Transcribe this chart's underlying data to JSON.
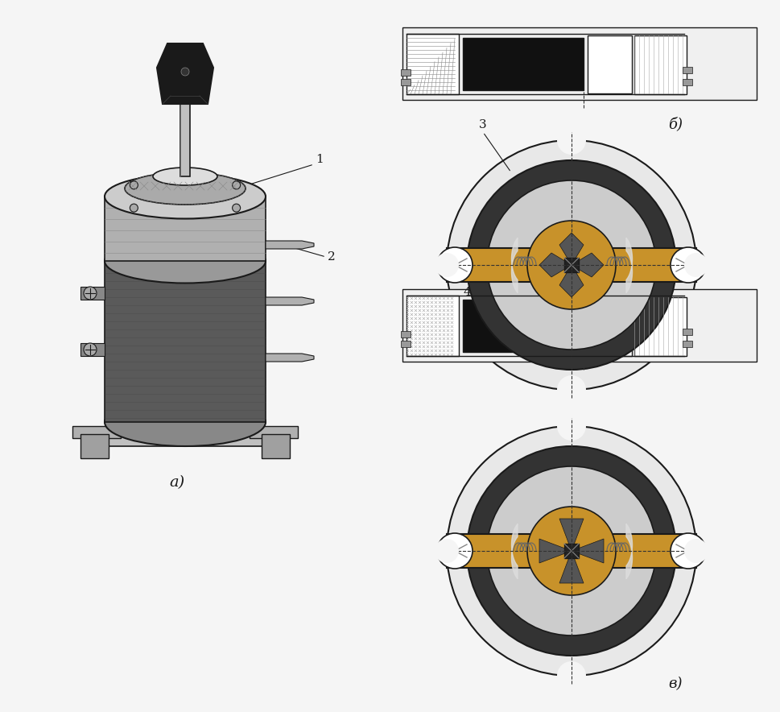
{
  "bg_color": "#f5f5f5",
  "title": "",
  "labels": {
    "a": "а)",
    "b": "б)",
    "v": "в)",
    "1": "1",
    "2": "2",
    "3": "3",
    "4": "4"
  },
  "colors": {
    "black": "#1a1a1a",
    "dark_gray": "#444444",
    "gray": "#888888",
    "light_gray": "#cccccc",
    "very_light_gray": "#e8e8e8",
    "white": "#ffffff",
    "gold": "#c8922a",
    "gold_light": "#d4a843",
    "hatch_color": "#666666",
    "bg": "#f5f5f5",
    "circle_outer": "#222222",
    "circle_mid": "#aaaaaa",
    "circle_inner_bg": "#dddddd"
  },
  "layout": {
    "fig_w": 9.5,
    "fig_h": 8.64
  }
}
